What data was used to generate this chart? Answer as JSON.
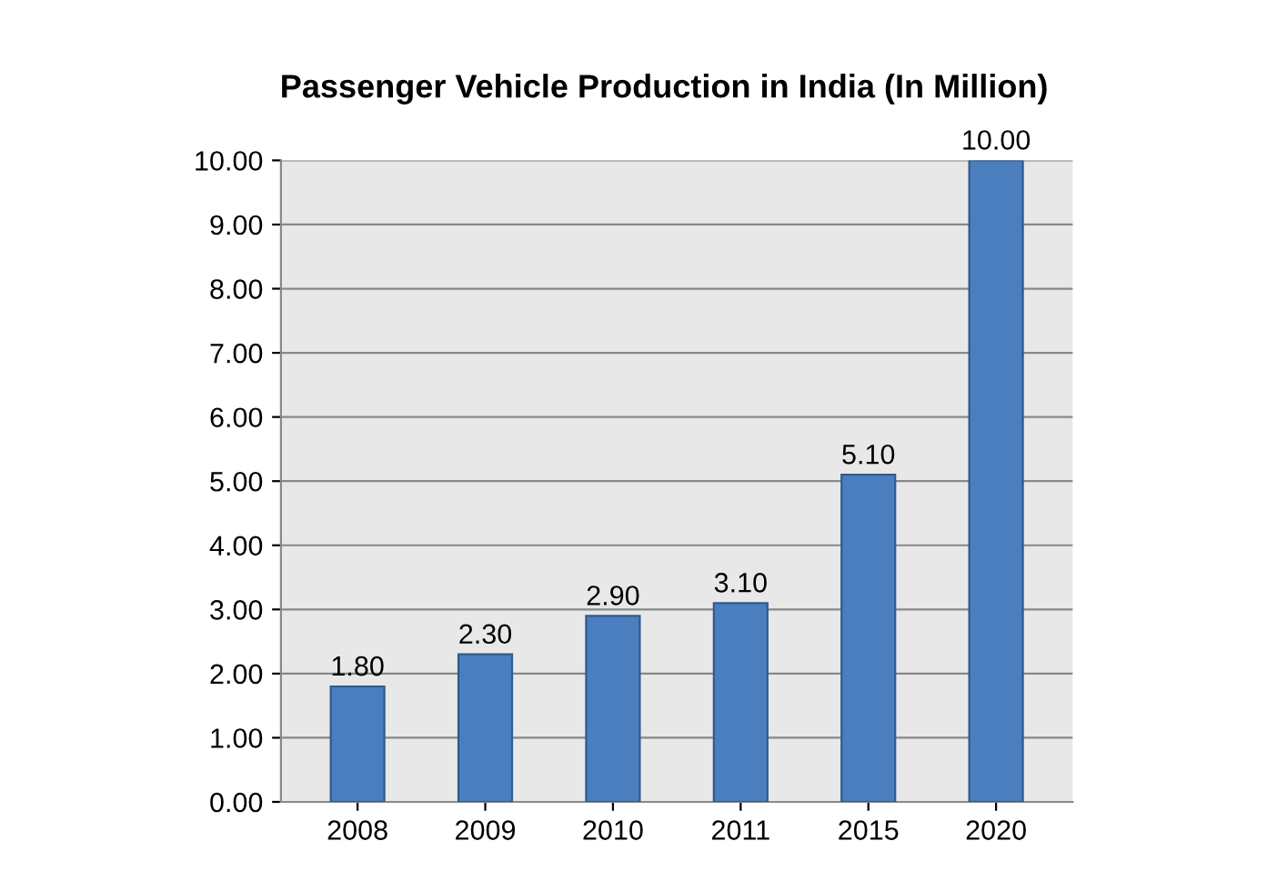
{
  "chart_data": {
    "type": "bar",
    "title": "Passenger Vehicle Production in India (In Million)",
    "categories": [
      "2008",
      "2009",
      "2010",
      "2011",
      "2015",
      "2020"
    ],
    "values": [
      1.8,
      2.3,
      2.9,
      3.1,
      5.1,
      10.0
    ],
    "value_labels": [
      "1.80",
      "2.30",
      "2.90",
      "3.10",
      "5.10",
      "10.00"
    ],
    "color": "#4a7ebf",
    "ylim": [
      0,
      10
    ],
    "yticks": [
      {
        "value": 0,
        "label": "0.00"
      },
      {
        "value": 1,
        "label": "1.00"
      },
      {
        "value": 2,
        "label": "2.00"
      },
      {
        "value": 3,
        "label": "3.00"
      },
      {
        "value": 4,
        "label": "4.00"
      },
      {
        "value": 5,
        "label": "5.00"
      },
      {
        "value": 6,
        "label": "6.00"
      },
      {
        "value": 7,
        "label": "7.00"
      },
      {
        "value": 8,
        "label": "8.00"
      },
      {
        "value": 9,
        "label": "9.00"
      },
      {
        "value": 10,
        "label": "10.00"
      }
    ],
    "grid": "y"
  }
}
